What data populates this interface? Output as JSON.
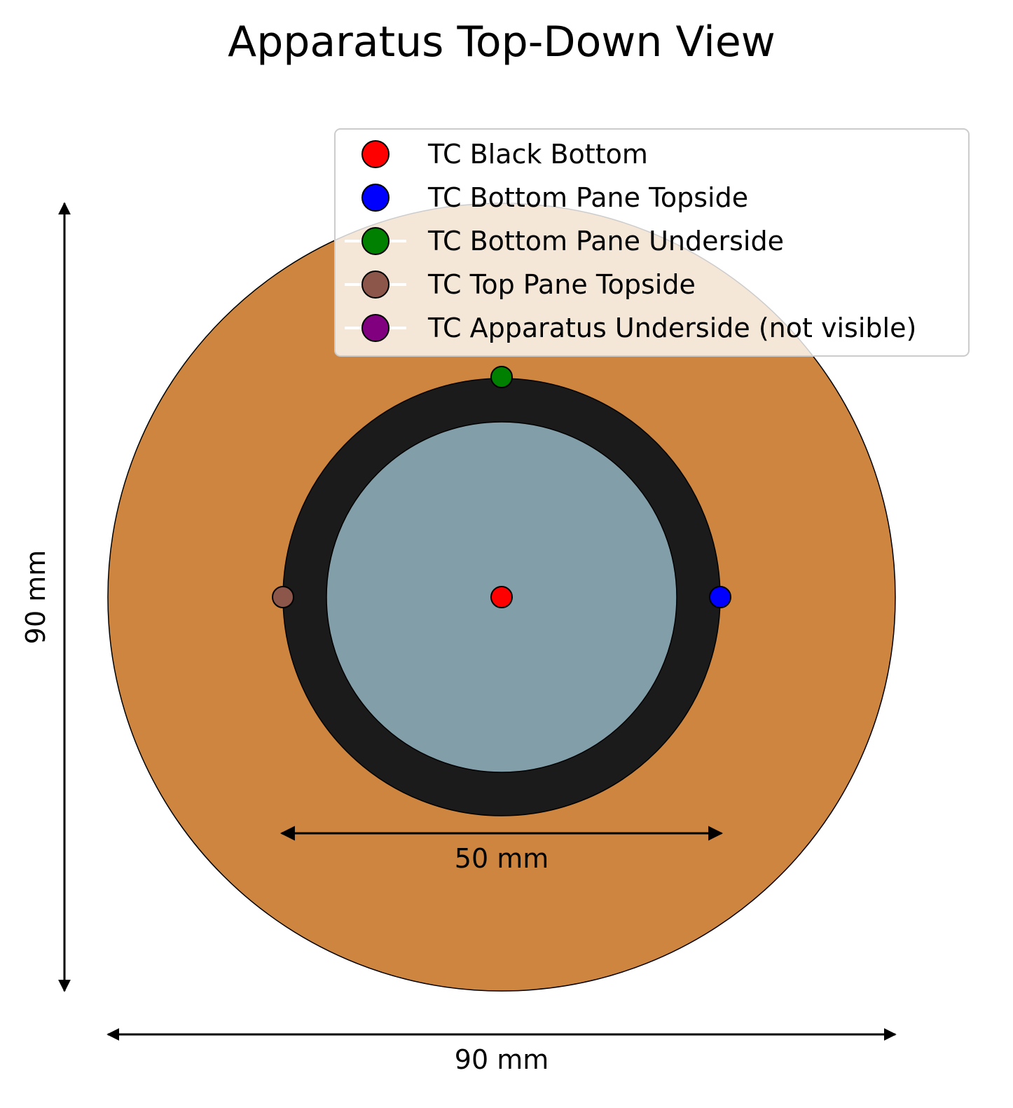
{
  "title": "Apparatus Top-Down View",
  "dimensions": {
    "outer_width_label": "90 mm",
    "outer_height_label": "90 mm",
    "inner_width_label": "50 mm"
  },
  "colors": {
    "outer_disc": "#cd853f",
    "black_ring": "#1b1b1b",
    "glass_pane": "#829fa9",
    "outline": "#000000"
  },
  "legend": {
    "items": [
      {
        "label": "TC Black Bottom",
        "color": "#ff0000"
      },
      {
        "label": "TC Bottom Pane Topside",
        "color": "#0000ff"
      },
      {
        "label": "TC Bottom Pane Underside",
        "color": "#008000"
      },
      {
        "label": "TC Top Pane Topside",
        "color": "#8c564b"
      },
      {
        "label": "TC Apparatus Underside (not visible)",
        "color": "#800080"
      }
    ]
  },
  "thermocouples": [
    {
      "name": "TC Black Bottom",
      "color": "#ff0000"
    },
    {
      "name": "TC Bottom Pane Topside",
      "color": "#0000ff"
    },
    {
      "name": "TC Bottom Pane Underside",
      "color": "#008000"
    },
    {
      "name": "TC Top Pane Topside",
      "color": "#8c564b"
    }
  ]
}
